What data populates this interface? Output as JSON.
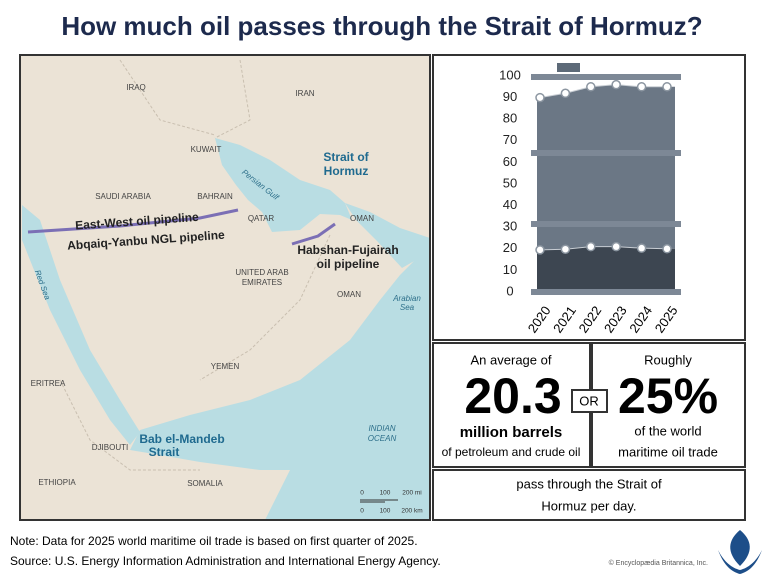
{
  "header": {
    "title": "How much oil passes through the Strait of Hormuz?"
  },
  "map": {
    "labels": [
      "IRAQ",
      "IRAN",
      "KUWAIT",
      "SAUDI ARABIA",
      "BAHRAIN",
      "QATAR",
      "Persian Gulf",
      "Strait of",
      "Hormuz",
      "OMAN",
      "UNITED ARAB",
      "EMIRATES",
      "OMAN",
      "Arabian",
      "Sea",
      "Red Sea",
      "YEMEN",
      "ERITREA",
      "INDIAN",
      "OCEAN",
      "Bab el-Mandeb",
      "Strait",
      "DJIBOUTI",
      "ETHIOPIA",
      "SOMALIA",
      "East-West oil pipeline",
      "Abqaiq-Yanbu NGL pipeline",
      "Habshan-Fujairah",
      "oil pipeline"
    ],
    "scale": {
      "mi": [
        "0",
        "100",
        "200 mi"
      ],
      "km": [
        "0",
        "100",
        "200 km"
      ]
    }
  },
  "chart_data": {
    "type": "barrel",
    "categories": [
      "2020",
      "2021",
      "2022",
      "2023",
      "2024",
      "2025"
    ],
    "series": [
      {
        "color": "#6b7785",
        "values": [
          90,
          92,
          95,
          96,
          95,
          95
        ]
      },
      {
        "color": "#3d4651",
        "values": [
          19.5,
          19.8,
          21,
          21,
          20.3,
          20
        ]
      }
    ],
    "ylim": [
      0,
      100
    ],
    "yticks": [
      0,
      10,
      20,
      30,
      40,
      50,
      60,
      70,
      80,
      90,
      100
    ]
  },
  "stats": {
    "left": {
      "intro": "An average of",
      "number": "20.3",
      "unit": "million barrels",
      "detail": "of petroleum and crude oil"
    },
    "or": "OR",
    "right": {
      "intro": "Roughly",
      "number": "25%",
      "line1": "of the world",
      "line2": "maritime oil trade"
    },
    "bottom": [
      "pass through the Strait of",
      "Hormuz per day."
    ]
  },
  "footer": {
    "note": "Note: Data for 2025 world maritime oil trade is based on first quarter of 2025.",
    "source": "Source: U.S. Energy Information Administration and International Energy Agency.",
    "credit": "© Encyclopædia Britannica, Inc."
  }
}
